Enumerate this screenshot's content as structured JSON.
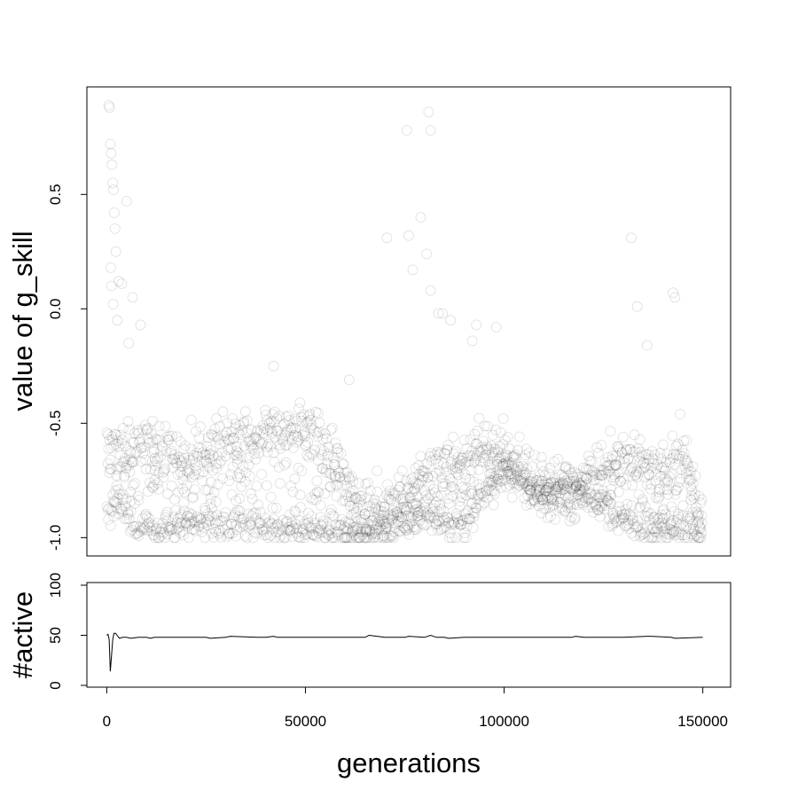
{
  "chart_data": [
    {
      "type": "scatter",
      "title": "",
      "xlabel": "",
      "ylabel": "value of g_skill",
      "xlim": [
        -5000,
        157000
      ],
      "ylim": [
        -1.08,
        0.97
      ],
      "yticks": [
        -1.0,
        -0.5,
        0.0,
        0.5
      ],
      "ytick_labels": [
        "-1.0",
        "-0.5",
        "0.0",
        "0.5"
      ],
      "grid": false,
      "legend": "none",
      "point_style": "open circle, semi-transparent black",
      "series": [
        {
          "points_x": [
            500,
            700,
            900,
            1100,
            1300,
            1500,
            1700,
            1900,
            2100,
            2300,
            1000,
            1200,
            1600,
            2600,
            3000,
            3800,
            5000,
            5500,
            6500,
            8500,
            42000,
            61000,
            70500,
            75500,
            76000,
            77000,
            79000,
            80500,
            81000,
            81500,
            81500,
            83500,
            84500,
            86500,
            92000,
            93000,
            98000,
            132000,
            133500,
            136000,
            142500,
            143000
          ],
          "points_y": [
            0.89,
            0.88,
            0.72,
            0.68,
            0.63,
            0.55,
            0.52,
            0.42,
            0.35,
            0.25,
            0.18,
            0.1,
            0.02,
            -0.05,
            0.12,
            0.11,
            0.47,
            -0.15,
            0.05,
            -0.07,
            -0.25,
            -0.31,
            0.31,
            0.78,
            0.32,
            0.17,
            0.4,
            0.24,
            0.86,
            0.78,
            0.08,
            -0.02,
            -0.02,
            -0.05,
            -0.14,
            -0.07,
            -0.08,
            0.31,
            0.01,
            -0.16,
            0.07,
            0.05
          ],
          "density_trend_x": [
            0,
            2000,
            5000,
            8000,
            12000,
            16000,
            20000,
            25000,
            30000,
            35000,
            40000,
            45000,
            50000,
            55000,
            60000,
            65000,
            70000,
            75000,
            80000,
            85000,
            90000,
            95000,
            100000,
            105000,
            110000,
            115000,
            120000,
            125000,
            130000,
            135000,
            140000,
            145000,
            150000
          ],
          "density_trend_upper": [
            -0.6,
            -0.62,
            -0.62,
            -0.6,
            -0.58,
            -0.62,
            -0.66,
            -0.6,
            -0.56,
            -0.55,
            -0.53,
            -0.53,
            -0.5,
            -0.62,
            -0.72,
            -0.88,
            -0.85,
            -0.82,
            -0.72,
            -0.68,
            -0.64,
            -0.6,
            -0.62,
            -0.67,
            -0.74,
            -0.76,
            -0.74,
            -0.7,
            -0.64,
            -0.67,
            -0.72,
            -0.6,
            -0.92
          ],
          "density_trend_lower": [
            -0.9,
            -0.85,
            -0.88,
            -0.95,
            -0.97,
            -0.96,
            -0.95,
            -0.94,
            -0.95,
            -0.93,
            -0.97,
            -0.98,
            -0.96,
            -0.97,
            -0.98,
            -0.98,
            -0.95,
            -0.92,
            -0.9,
            -0.93,
            -0.95,
            -0.82,
            -0.72,
            -0.78,
            -0.8,
            -0.82,
            -0.83,
            -0.88,
            -0.93,
            -0.95,
            -0.97,
            -0.97,
            -0.96
          ]
        }
      ]
    },
    {
      "type": "line",
      "title": "",
      "xlabel": "generations",
      "ylabel": "#active",
      "xlim": [
        -5000,
        157000
      ],
      "ylim": [
        0,
        100
      ],
      "xticks": [
        0,
        50000,
        100000,
        150000
      ],
      "xtick_labels": [
        "0",
        "50000",
        "100000",
        "150000"
      ],
      "yticks": [
        0,
        50,
        100
      ],
      "ytick_labels": [
        "0",
        "50",
        "100"
      ],
      "grid": false,
      "legend": "none",
      "series": [
        {
          "x": [
            0,
            300,
            600,
            900,
            1200,
            1500,
            1800,
            2200,
            2600,
            3200,
            4000,
            5000,
            6000,
            8000,
            10000,
            11000,
            12000,
            20000,
            25000,
            26000,
            30000,
            31000,
            38000,
            40000,
            42000,
            43000,
            50000,
            60000,
            65000,
            66000,
            70000,
            75000,
            76000,
            80000,
            81500,
            83000,
            85000,
            86000,
            90000,
            92000,
            100000,
            107000,
            110000,
            117000,
            118000,
            120000,
            125000,
            127000,
            130000,
            136000,
            137000,
            142000,
            143000,
            150000
          ],
          "y": [
            50,
            51,
            46,
            14,
            30,
            45,
            52,
            52,
            50,
            47,
            48,
            48,
            47,
            48,
            48,
            47,
            48,
            48,
            48,
            47,
            48,
            49,
            48,
            48,
            49,
            48,
            48,
            48,
            48,
            50,
            48,
            48,
            49,
            48,
            50,
            48,
            48,
            47,
            48,
            48,
            48,
            48,
            48,
            48,
            49,
            48,
            48,
            48,
            48,
            49,
            49,
            48,
            47,
            48
          ]
        }
      ]
    }
  ]
}
